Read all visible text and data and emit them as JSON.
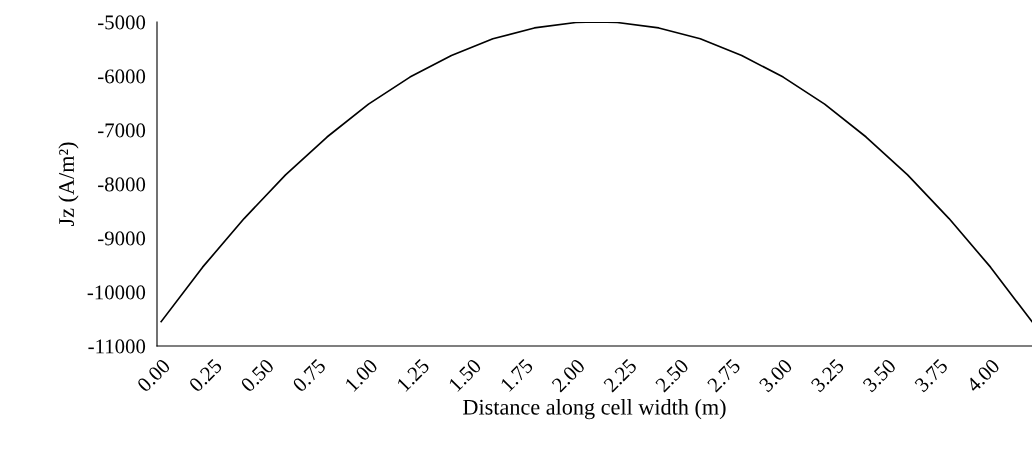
{
  "chart_data": {
    "type": "line",
    "xlabel": "Distance along cell width (m)",
    "ylabel": "Jz (A/m²)",
    "x": [
      0,
      0.2,
      0.4,
      0.6,
      0.8,
      1.0,
      1.2,
      1.4,
      1.6,
      1.8,
      2.0,
      2.1,
      2.2,
      2.4,
      2.6,
      2.8,
      3.0,
      3.2,
      3.4,
      3.6,
      3.8,
      4.0,
      4.2
    ],
    "series": [
      {
        "color": "#000000",
        "values": [
          -10550,
          -9540,
          -8640,
          -7830,
          -7130,
          -6520,
          -6020,
          -5620,
          -5310,
          -5110,
          -5010,
          -5000,
          -5010,
          -5110,
          -5310,
          -5620,
          -6020,
          -6520,
          -7130,
          -7830,
          -8640,
          -9540,
          -10550
        ]
      }
    ],
    "xlim": [
      -0.02,
      4.2
    ],
    "ylim": [
      -11000,
      -5000
    ],
    "xticks": [
      {
        "value": 0,
        "label": "0.00"
      },
      {
        "value": 0.25,
        "label": "0.25"
      },
      {
        "value": 0.5,
        "label": "0.50"
      },
      {
        "value": 0.75,
        "label": "0.75"
      },
      {
        "value": 1,
        "label": "1.00"
      },
      {
        "value": 1.25,
        "label": "1.25"
      },
      {
        "value": 1.5,
        "label": "1.50"
      },
      {
        "value": 1.75,
        "label": "1.75"
      },
      {
        "value": 2,
        "label": "2.00"
      },
      {
        "value": 2.25,
        "label": "2.25"
      },
      {
        "value": 2.5,
        "label": "2.50"
      },
      {
        "value": 2.75,
        "label": "2.75"
      },
      {
        "value": 3,
        "label": "3.00"
      },
      {
        "value": 3.25,
        "label": "3.25"
      },
      {
        "value": 3.5,
        "label": "3.50"
      },
      {
        "value": 3.75,
        "label": "3.75"
      },
      {
        "value": 4,
        "label": "4.00"
      }
    ],
    "yticks": [
      -11000,
      -10000,
      -9000,
      -8000,
      -7000,
      -6000,
      -5000
    ],
    "grid": false,
    "legend": false,
    "marker": "none",
    "line_style": "solid"
  }
}
